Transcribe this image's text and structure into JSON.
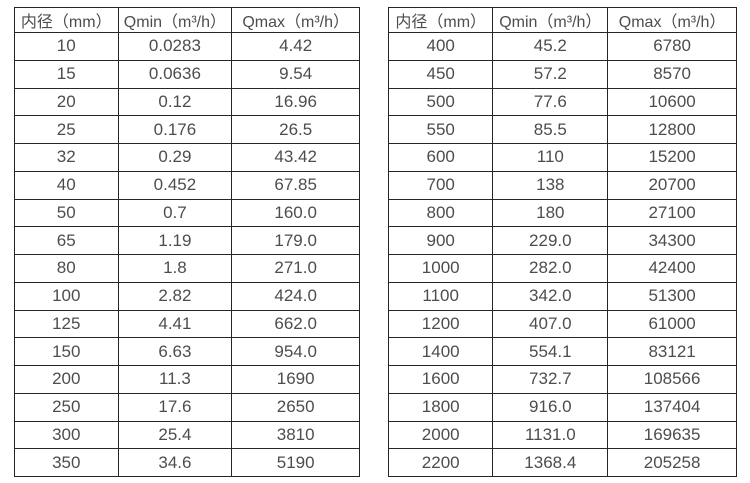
{
  "page": {
    "description": "Flow meter inner-diameter vs minimum and maximum flow rate specification tables"
  },
  "colors": {
    "border": "#262626",
    "text": "#4d4d4d",
    "background": "#ffffff"
  },
  "left_table": {
    "headers": [
      "内径（mm）",
      "Qmin（m³/h）",
      "Qmax（m³/h）"
    ],
    "rows": [
      [
        "10",
        "0.0283",
        "4.42"
      ],
      [
        "15",
        "0.0636",
        "9.54"
      ],
      [
        "20",
        "0.12",
        "16.96"
      ],
      [
        "25",
        "0.176",
        "26.5"
      ],
      [
        "32",
        "0.29",
        "43.42"
      ],
      [
        "40",
        "0.452",
        "67.85"
      ],
      [
        "50",
        "0.7",
        "160.0"
      ],
      [
        "65",
        "1.19",
        "179.0"
      ],
      [
        "80",
        "1.8",
        "271.0"
      ],
      [
        "100",
        "2.82",
        "424.0"
      ],
      [
        "125",
        "4.41",
        "662.0"
      ],
      [
        "150",
        "6.63",
        "954.0"
      ],
      [
        "200",
        "11.3",
        "1690"
      ],
      [
        "250",
        "17.6",
        "2650"
      ],
      [
        "300",
        "25.4",
        "3810"
      ],
      [
        "350",
        "34.6",
        "5190"
      ]
    ]
  },
  "right_table": {
    "headers": [
      "内径（mm）",
      "Qmin（m³/h）",
      "Qmax（m³/h）"
    ],
    "rows": [
      [
        "400",
        "45.2",
        "6780"
      ],
      [
        "450",
        "57.2",
        "8570"
      ],
      [
        "500",
        "77.6",
        "10600"
      ],
      [
        "550",
        "85.5",
        "12800"
      ],
      [
        "600",
        "110",
        "15200"
      ],
      [
        "700",
        "138",
        "20700"
      ],
      [
        "800",
        "180",
        "27100"
      ],
      [
        "900",
        "229.0",
        "34300"
      ],
      [
        "1000",
        "282.0",
        "42400"
      ],
      [
        "1100",
        "342.0",
        "51300"
      ],
      [
        "1200",
        "407.0",
        "61000"
      ],
      [
        "1400",
        "554.1",
        "83121"
      ],
      [
        "1600",
        "732.7",
        "108566"
      ],
      [
        "1800",
        "916.0",
        "137404"
      ],
      [
        "2000",
        "1131.0",
        "169635"
      ],
      [
        "2200",
        "1368.4",
        "205258"
      ]
    ]
  }
}
